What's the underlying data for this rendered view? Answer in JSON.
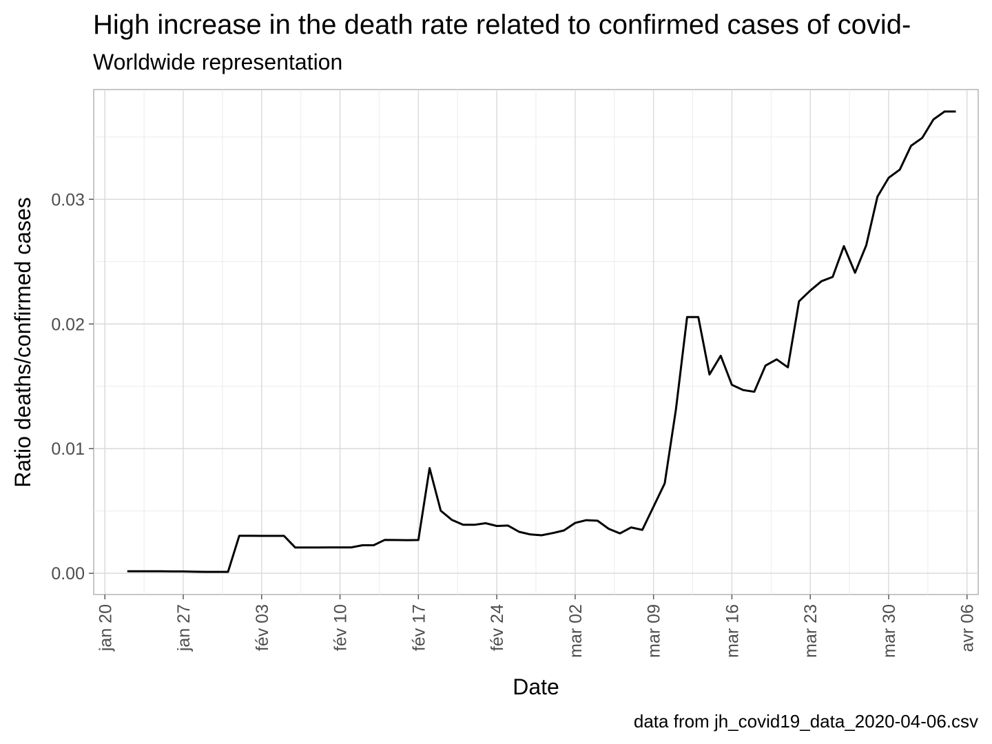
{
  "chart_data": {
    "type": "line",
    "title": "High increase in the death rate related to confirmed cases of covid-",
    "subtitle": "Worldwide representation",
    "caption": "data from jh_covid19_data_2020-04-06.csv",
    "xlabel": "Date",
    "ylabel": "Ratio deaths/confirmed cases",
    "ylim": [
      -0.0017,
      0.0388
    ],
    "xlim": [
      "2020-01-19",
      "2020-04-07"
    ],
    "grid": true,
    "y_ticks": [
      {
        "value": 0.0,
        "label": "0.00"
      },
      {
        "value": 0.01,
        "label": "0.01"
      },
      {
        "value": 0.02,
        "label": "0.02"
      },
      {
        "value": 0.03,
        "label": "0.03"
      }
    ],
    "x_ticks": [
      {
        "date": "2020-01-20",
        "label": "jan 20"
      },
      {
        "date": "2020-01-27",
        "label": "jan 27"
      },
      {
        "date": "2020-02-03",
        "label": "fév 03"
      },
      {
        "date": "2020-02-10",
        "label": "fév 10"
      },
      {
        "date": "2020-02-17",
        "label": "fév 17"
      },
      {
        "date": "2020-02-24",
        "label": "fév 24"
      },
      {
        "date": "2020-03-02",
        "label": "mar 02"
      },
      {
        "date": "2020-03-09",
        "label": "mar 09"
      },
      {
        "date": "2020-03-16",
        "label": "mar 16"
      },
      {
        "date": "2020-03-23",
        "label": "mar 23"
      },
      {
        "date": "2020-03-30",
        "label": "mar 30"
      },
      {
        "date": "2020-04-06",
        "label": "avr 06"
      }
    ],
    "series": [
      {
        "x": [
          "2020-01-22",
          "2020-01-23",
          "2020-01-24",
          "2020-01-25",
          "2020-01-26",
          "2020-01-27",
          "2020-01-28",
          "2020-01-29",
          "2020-01-30",
          "2020-01-31",
          "2020-02-01",
          "2020-02-02",
          "2020-02-03",
          "2020-02-04",
          "2020-02-05",
          "2020-02-06",
          "2020-02-07",
          "2020-02-08",
          "2020-02-09",
          "2020-02-10",
          "2020-02-11",
          "2020-02-12",
          "2020-02-13",
          "2020-02-14",
          "2020-02-15",
          "2020-02-16",
          "2020-02-17",
          "2020-02-18",
          "2020-02-19",
          "2020-02-20",
          "2020-02-21",
          "2020-02-22",
          "2020-02-23",
          "2020-02-24",
          "2020-02-25",
          "2020-02-26",
          "2020-02-27",
          "2020-02-28",
          "2020-02-29",
          "2020-03-01",
          "2020-03-02",
          "2020-03-03",
          "2020-03-04",
          "2020-03-05",
          "2020-03-06",
          "2020-03-07",
          "2020-03-08",
          "2020-03-09",
          "2020-03-10",
          "2020-03-11",
          "2020-03-12",
          "2020-03-13",
          "2020-03-14",
          "2020-03-15",
          "2020-03-16",
          "2020-03-17",
          "2020-03-18",
          "2020-03-19",
          "2020-03-20",
          "2020-03-21",
          "2020-03-22",
          "2020-03-23",
          "2020-03-24",
          "2020-03-25",
          "2020-03-26",
          "2020-03-27",
          "2020-03-28",
          "2020-03-29",
          "2020-03-30",
          "2020-03-31",
          "2020-04-01",
          "2020-04-02",
          "2020-04-03",
          "2020-04-04",
          "2020-04-05"
        ],
        "values": [
          0.00017,
          0.00016,
          0.00016,
          0.00016,
          0.00015,
          0.00015,
          0.00013,
          0.00012,
          0.00012,
          0.00012,
          0.00301,
          0.00301,
          0.003,
          0.003,
          0.003,
          0.00207,
          0.00207,
          0.00207,
          0.00208,
          0.00208,
          0.00208,
          0.00225,
          0.00225,
          0.00268,
          0.00267,
          0.00266,
          0.00267,
          0.00844,
          0.00502,
          0.00428,
          0.00389,
          0.00389,
          0.00402,
          0.0038,
          0.00383,
          0.00333,
          0.00312,
          0.00305,
          0.00323,
          0.00344,
          0.00404,
          0.00426,
          0.00422,
          0.00357,
          0.0032,
          0.00368,
          0.00348,
          0.00535,
          0.00721,
          0.01315,
          0.02055,
          0.02055,
          0.01595,
          0.01745,
          0.01512,
          0.0147,
          0.01456,
          0.01666,
          0.01716,
          0.01652,
          0.02182,
          0.02268,
          0.02343,
          0.02377,
          0.02624,
          0.02411,
          0.02632,
          0.03021,
          0.03172,
          0.03238,
          0.03429,
          0.03492,
          0.0364,
          0.03704,
          0.03704
        ]
      }
    ]
  }
}
